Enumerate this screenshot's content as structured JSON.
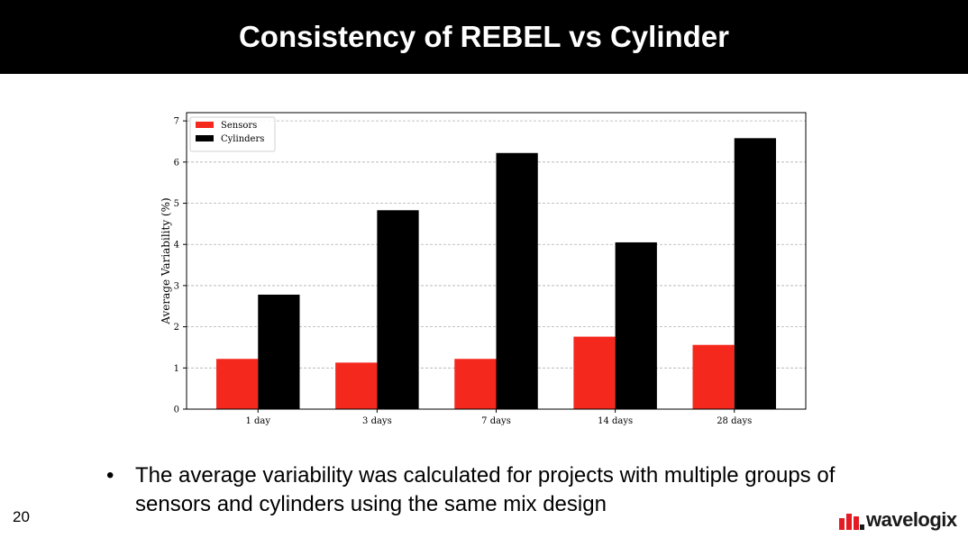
{
  "slide": {
    "title": "Consistency of REBEL vs Cylinder",
    "bullet": "The average variability was calculated for projects with multiple groups of sensors and cylinders using the same mix design",
    "slide_number": "20",
    "logo_text": "wavelogix"
  },
  "chart_data": {
    "type": "bar",
    "categories": [
      "1 day",
      "3 days",
      "7 days",
      "14 days",
      "28 days"
    ],
    "series": [
      {
        "name": "Sensors",
        "values": [
          1.22,
          1.13,
          1.22,
          1.76,
          1.56
        ],
        "color": "#f5281e"
      },
      {
        "name": "Cylinders",
        "values": [
          2.78,
          4.83,
          6.22,
          4.05,
          6.58
        ],
        "color": "#000000"
      }
    ],
    "title": "",
    "xlabel": "",
    "ylabel": "Average Variability (%)",
    "ylim": [
      0,
      7.2
    ],
    "yticks": [
      0,
      1,
      2,
      3,
      4,
      5,
      6,
      7
    ],
    "grid": true,
    "legend": "top-left"
  }
}
